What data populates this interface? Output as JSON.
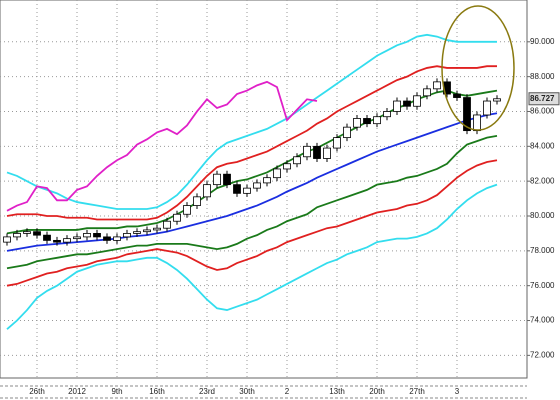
{
  "chart_data": {
    "type": "candlestick",
    "categories": [
      null,
      null,
      null,
      "26th",
      null,
      null,
      null,
      "2012",
      null,
      null,
      null,
      "9th",
      null,
      null,
      null,
      "16th",
      null,
      null,
      null,
      null,
      "23rd",
      null,
      null,
      null,
      "30th",
      null,
      null,
      null,
      "2",
      null,
      null,
      null,
      null,
      "13th",
      null,
      null,
      null,
      "20th",
      null,
      null,
      null,
      "27th",
      null,
      null,
      null,
      "3",
      null,
      null,
      null,
      null
    ],
    "open": [
      78.5,
      78.8,
      79.0,
      79.1,
      78.9,
      78.6,
      78.5,
      78.7,
      78.8,
      79.0,
      78.8,
      78.6,
      78.8,
      79.0,
      79.1,
      79.2,
      79.3,
      79.7,
      80.1,
      80.6,
      81.1,
      81.8,
      82.4,
      81.8,
      81.3,
      81.6,
      81.9,
      82.2,
      82.7,
      83.0,
      83.4,
      84.0,
      83.3,
      83.9,
      84.5,
      85.1,
      85.6,
      85.3,
      85.7,
      86.0,
      86.6,
      86.3,
      86.9,
      87.3,
      87.7,
      87.0,
      86.8,
      84.9,
      85.8,
      86.6
    ],
    "high": [
      79.0,
      79.2,
      79.3,
      79.3,
      79.1,
      78.8,
      78.9,
      79.0,
      79.2,
      79.2,
      79.0,
      79.0,
      79.2,
      79.3,
      79.4,
      79.5,
      79.9,
      80.3,
      80.8,
      81.3,
      82.0,
      82.6,
      82.6,
      82.0,
      81.8,
      82.1,
      82.4,
      82.9,
      83.2,
      83.6,
      84.2,
      84.2,
      84.1,
      84.7,
      85.3,
      85.8,
      85.8,
      85.9,
      86.2,
      86.8,
      86.8,
      87.1,
      87.5,
      87.9,
      87.9,
      87.2,
      87.0,
      86.0,
      86.8,
      86.93
    ],
    "low": [
      78.3,
      78.6,
      78.8,
      78.7,
      78.4,
      78.3,
      78.3,
      78.5,
      78.6,
      78.6,
      78.4,
      78.4,
      78.6,
      78.8,
      78.9,
      79.0,
      79.1,
      79.5,
      79.9,
      80.4,
      80.9,
      81.6,
      81.6,
      81.1,
      81.1,
      81.4,
      81.7,
      82.0,
      82.5,
      82.8,
      83.2,
      83.1,
      83.1,
      83.7,
      84.3,
      84.9,
      85.1,
      85.1,
      85.5,
      85.8,
      86.1,
      86.1,
      86.7,
      87.1,
      86.8,
      86.6,
      84.7,
      84.7,
      85.6,
      86.4
    ],
    "close": [
      78.8,
      79.0,
      79.1,
      78.9,
      78.6,
      78.5,
      78.7,
      78.8,
      79.0,
      78.8,
      78.6,
      78.8,
      79.0,
      79.1,
      79.2,
      79.3,
      79.7,
      80.1,
      80.6,
      81.1,
      81.8,
      82.4,
      81.8,
      81.3,
      81.6,
      81.9,
      82.2,
      82.7,
      83.0,
      83.4,
      84.0,
      83.3,
      83.9,
      84.5,
      85.1,
      85.6,
      85.3,
      85.7,
      86.0,
      86.6,
      86.3,
      86.9,
      87.3,
      87.7,
      87.0,
      86.8,
      84.9,
      85.8,
      86.6,
      86.73
    ],
    "series": [
      {
        "color": "#33ddee",
        "values": [
          82.5,
          82.3,
          82.0,
          81.7,
          81.5,
          81.3,
          81.0,
          80.8,
          80.7,
          80.6,
          80.5,
          80.4,
          80.4,
          80.4,
          80.4,
          80.5,
          80.8,
          81.2,
          81.8,
          82.5,
          83.2,
          83.8,
          84.2,
          84.4,
          84.6,
          84.8,
          85.0,
          85.3,
          85.6,
          86.0,
          86.4,
          86.8,
          87.2,
          87.6,
          88.0,
          88.4,
          88.8,
          89.2,
          89.5,
          89.8,
          90.0,
          90.3,
          90.4,
          90.3,
          90.1,
          90.0,
          90.0,
          90.0,
          90.0,
          90.0
        ]
      },
      {
        "color": "#e02020",
        "values": [
          80.0,
          80.1,
          80.1,
          80.1,
          80.0,
          80.0,
          79.9,
          79.9,
          79.9,
          79.8,
          79.8,
          79.8,
          79.8,
          79.8,
          79.8,
          79.9,
          80.2,
          80.6,
          81.1,
          81.7,
          82.3,
          82.8,
          83.0,
          83.1,
          83.3,
          83.5,
          83.7,
          84.0,
          84.3,
          84.6,
          84.9,
          85.3,
          85.6,
          86.0,
          86.3,
          86.6,
          86.9,
          87.2,
          87.5,
          87.8,
          88.0,
          88.3,
          88.5,
          88.6,
          88.5,
          88.5,
          88.5,
          88.5,
          88.6,
          88.6
        ]
      },
      {
        "color": "#1a7a1a",
        "values": [
          79.0,
          79.1,
          79.2,
          79.2,
          79.2,
          79.2,
          79.2,
          79.2,
          79.3,
          79.3,
          79.3,
          79.3,
          79.4,
          79.4,
          79.5,
          79.6,
          79.8,
          80.1,
          80.4,
          80.8,
          81.2,
          81.6,
          81.8,
          82.0,
          82.1,
          82.3,
          82.5,
          82.8,
          83.1,
          83.4,
          83.7,
          83.9,
          84.2,
          84.5,
          84.8,
          85.1,
          85.4,
          85.6,
          85.9,
          86.2,
          86.4,
          86.7,
          86.9,
          87.1,
          87.2,
          87.0,
          86.9,
          87.0,
          87.1,
          87.2
        ]
      },
      {
        "color": "#1a2ee0",
        "values": [
          78.0,
          78.1,
          78.2,
          78.3,
          78.35,
          78.4,
          78.45,
          78.5,
          78.55,
          78.6,
          78.65,
          78.7,
          78.8,
          78.85,
          78.9,
          79.0,
          79.1,
          79.25,
          79.4,
          79.55,
          79.7,
          79.85,
          80.0,
          80.2,
          80.4,
          80.6,
          80.85,
          81.1,
          81.4,
          81.65,
          81.9,
          82.2,
          82.45,
          82.7,
          82.95,
          83.2,
          83.45,
          83.7,
          83.9,
          84.1,
          84.3,
          84.5,
          84.7,
          84.9,
          85.1,
          85.3,
          85.5,
          85.65,
          85.8,
          85.9
        ]
      },
      {
        "color": "#1a7a1a",
        "values": [
          77.0,
          77.1,
          77.2,
          77.4,
          77.5,
          77.6,
          77.7,
          77.8,
          77.8,
          77.9,
          78.0,
          78.1,
          78.2,
          78.3,
          78.3,
          78.4,
          78.4,
          78.4,
          78.4,
          78.3,
          78.2,
          78.1,
          78.2,
          78.4,
          78.7,
          78.9,
          79.2,
          79.4,
          79.7,
          79.9,
          80.1,
          80.5,
          80.7,
          80.9,
          81.1,
          81.3,
          81.5,
          81.8,
          81.9,
          82.0,
          82.2,
          82.3,
          82.5,
          82.7,
          83.0,
          83.6,
          84.1,
          84.3,
          84.5,
          84.6
        ]
      },
      {
        "color": "#e02020",
        "values": [
          76.0,
          76.1,
          76.3,
          76.5,
          76.7,
          76.8,
          77.0,
          77.1,
          77.2,
          77.4,
          77.5,
          77.6,
          77.8,
          77.9,
          78.0,
          78.1,
          78.0,
          77.9,
          77.7,
          77.4,
          77.1,
          76.9,
          77.0,
          77.3,
          77.5,
          77.7,
          78.0,
          78.2,
          78.5,
          78.7,
          78.9,
          79.1,
          79.3,
          79.4,
          79.6,
          79.8,
          80.0,
          80.2,
          80.3,
          80.4,
          80.6,
          80.7,
          80.9,
          81.2,
          81.7,
          82.2,
          82.6,
          82.9,
          83.1,
          83.2
        ]
      },
      {
        "color": "#33ddee",
        "values": [
          73.5,
          74.0,
          74.6,
          75.3,
          75.7,
          76.0,
          76.4,
          76.8,
          77.0,
          77.2,
          77.3,
          77.4,
          77.4,
          77.5,
          77.6,
          77.6,
          77.3,
          76.9,
          76.4,
          75.8,
          75.2,
          74.7,
          74.6,
          74.8,
          75.0,
          75.2,
          75.5,
          75.8,
          76.1,
          76.4,
          76.7,
          77.0,
          77.3,
          77.5,
          77.8,
          78.0,
          78.2,
          78.5,
          78.6,
          78.7,
          78.7,
          78.8,
          79.0,
          79.3,
          79.8,
          80.4,
          80.9,
          81.3,
          81.6,
          81.8
        ]
      },
      {
        "color": "#e020c8",
        "values": [
          80.3,
          80.6,
          80.8,
          81.7,
          81.6,
          80.9,
          80.9,
          81.5,
          81.7,
          82.3,
          82.8,
          83.2,
          83.5,
          84.1,
          84.4,
          84.8,
          85.0,
          84.7,
          85.2,
          86.0,
          86.7,
          86.2,
          86.4,
          87.0,
          87.2,
          87.5,
          87.7,
          87.4,
          85.5,
          86.1,
          86.7,
          86.6,
          null,
          null,
          null,
          null,
          null,
          null,
          null,
          null,
          null,
          null,
          null,
          null,
          null,
          null,
          null,
          null,
          null,
          null
        ]
      }
    ],
    "last_label": "86.727",
    "ylim": [
      70.7,
      92.4
    ],
    "yticks": [
      {
        "value": 72,
        "label": "72.000"
      },
      {
        "value": 74,
        "label": "74.000"
      },
      {
        "value": 76,
        "label": "76.000"
      },
      {
        "value": 78,
        "label": "78.000"
      },
      {
        "value": 80,
        "label": "80.000"
      },
      {
        "value": 82,
        "label": "82.000"
      },
      {
        "value": 84,
        "label": "84.000"
      },
      {
        "value": 86,
        "label": "86.000"
      },
      {
        "value": 88,
        "label": "88.000"
      },
      {
        "value": 90,
        "label": "90.000"
      }
    ],
    "grid": true
  }
}
